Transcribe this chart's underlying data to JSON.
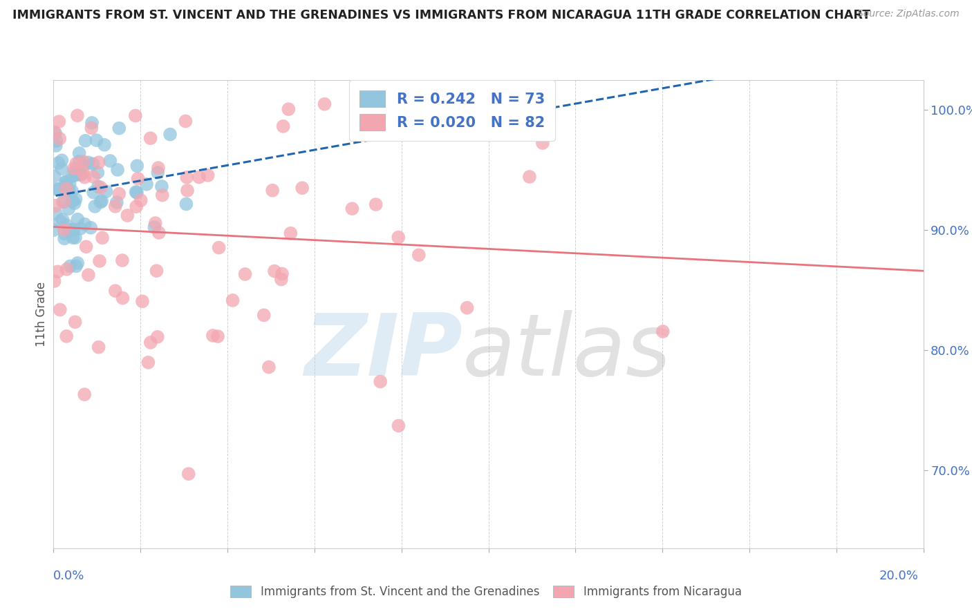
{
  "title": "IMMIGRANTS FROM ST. VINCENT AND THE GRENADINES VS IMMIGRANTS FROM NICARAGUA 11TH GRADE CORRELATION CHART",
  "source": "Source: ZipAtlas.com",
  "ylabel": "11th Grade",
  "r1": 0.242,
  "n1": 73,
  "r2": 0.02,
  "n2": 82,
  "color1": "#92c5de",
  "color2": "#f4a6b0",
  "trendline1_color": "#2166ac",
  "trendline2_color": "#e8737d",
  "watermark_zip_color": "#b8d4ea",
  "watermark_atlas_color": "#aaaaaa",
  "xlim": [
    0.0,
    0.2
  ],
  "ylim": [
    0.635,
    1.025
  ],
  "right_yticks": [
    0.7,
    0.8,
    0.9,
    1.0
  ],
  "right_yticklabels": [
    "70.0%",
    "80.0%",
    "90.0%",
    "100.0%"
  ],
  "legend1_label": "Immigrants from St. Vincent and the Grenadines",
  "legend2_label": "Immigrants from Nicaragua",
  "legend_r1": "R = 0.242",
  "legend_n1": "N = 73",
  "legend_r2": "R = 0.020",
  "legend_n2": "N = 82"
}
